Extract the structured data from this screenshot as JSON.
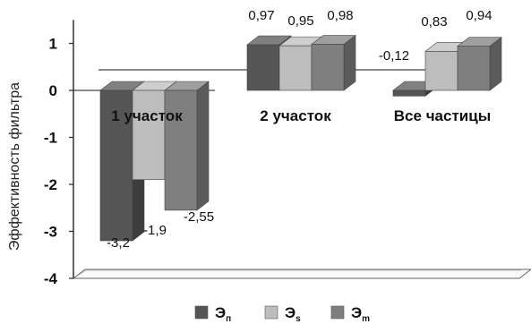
{
  "chart_data": {
    "type": "bar",
    "ylabel": "Эффективность фильтра",
    "ylim": [
      -4,
      1.5
    ],
    "yticks": [
      1,
      0,
      -1,
      -2,
      -3,
      -4
    ],
    "categories": [
      "1 участок",
      "2 участок",
      "Все частицы"
    ],
    "series": [
      {
        "name": "Эп",
        "sub": "п",
        "color": "#555555",
        "values": [
          -3.2,
          0.97,
          -0.12
        ],
        "labels": [
          "-3,2",
          "0,97",
          "-0,12"
        ]
      },
      {
        "name": "Эs",
        "sub": "s",
        "color": "#bdbdbd",
        "values": [
          -1.9,
          0.95,
          0.83
        ],
        "labels": [
          "-1,9",
          "0,95",
          "0,83"
        ]
      },
      {
        "name": "Эm",
        "sub": "m",
        "color": "#7f7f7f",
        "values": [
          -2.55,
          0.98,
          0.94
        ],
        "labels": [
          "-2,55",
          "0,98",
          "0,94"
        ]
      }
    ],
    "legend_position": "bottom",
    "grid": false
  }
}
